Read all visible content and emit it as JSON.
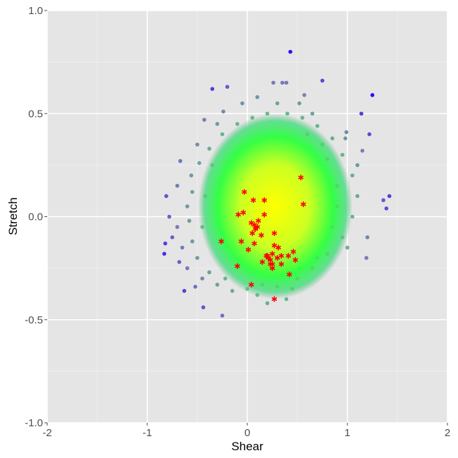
{
  "chart_data": {
    "type": "scatter",
    "xlabel": "Shear",
    "ylabel": "Stretch",
    "xlim": [
      -2,
      2
    ],
    "ylim": [
      -1,
      1
    ],
    "x_ticks": [
      "-2",
      "-1",
      "0",
      "1",
      "2"
    ],
    "y_ticks": [
      "-1.0",
      "-0.5",
      "0.0",
      "0.5",
      "1.0"
    ],
    "grid": true,
    "background": "#e5e5e5",
    "color_scale": [
      "#ffff00",
      "#33ff33",
      "#66bb88",
      "#7777bb",
      "#3300ff"
    ],
    "highlight_color": "#ff0000",
    "points": [
      [
        0.43,
        0.8
      ],
      [
        0.75,
        0.66
      ],
      [
        -0.35,
        0.62
      ],
      [
        -0.2,
        0.63
      ],
      [
        1.25,
        0.59
      ],
      [
        1.14,
        0.5
      ],
      [
        1.22,
        0.4
      ],
      [
        1.42,
        0.1
      ],
      [
        1.36,
        0.08
      ],
      [
        1.39,
        0.04
      ],
      [
        1.19,
        -0.2
      ],
      [
        -0.82,
        -0.13
      ],
      [
        -0.81,
        0.1
      ],
      [
        -0.67,
        0.27
      ],
      [
        -0.25,
        -0.48
      ],
      [
        -0.44,
        -0.44
      ],
      [
        -0.63,
        -0.36
      ],
      [
        0.39,
        -0.4
      ],
      [
        -0.52,
        -0.34
      ],
      [
        -0.83,
        -0.18
      ],
      [
        -0.43,
        0.47
      ],
      [
        -0.24,
        0.51
      ],
      [
        0.26,
        0.65
      ],
      [
        0.35,
        0.65
      ],
      [
        0.39,
        0.65
      ],
      [
        0.57,
        0.59
      ],
      [
        0.99,
        0.41
      ],
      [
        1.15,
        0.32
      ],
      [
        -0.56,
        0.2
      ],
      [
        -0.6,
        0.05
      ],
      [
        -0.7,
        -0.05
      ],
      [
        -0.65,
        -0.15
      ],
      [
        -0.6,
        -0.25
      ],
      [
        -0.45,
        -0.3
      ],
      [
        -0.3,
        -0.33
      ],
      [
        -0.15,
        -0.36
      ],
      [
        0.0,
        -0.35
      ],
      [
        0.15,
        -0.33
      ],
      [
        0.3,
        -0.34
      ],
      [
        0.5,
        -0.3
      ],
      [
        0.65,
        -0.25
      ],
      [
        0.8,
        -0.18
      ],
      [
        0.95,
        -0.1
      ],
      [
        1.05,
        0.0
      ],
      [
        1.1,
        0.1
      ],
      [
        1.05,
        0.2
      ],
      [
        0.95,
        0.3
      ],
      [
        0.85,
        0.38
      ],
      [
        0.7,
        0.44
      ],
      [
        0.55,
        0.48
      ],
      [
        0.4,
        0.5
      ],
      [
        0.2,
        0.5
      ],
      [
        0.05,
        0.48
      ],
      [
        -0.1,
        0.45
      ],
      [
        -0.25,
        0.4
      ],
      [
        -0.38,
        0.33
      ],
      [
        -0.48,
        0.26
      ],
      [
        -0.55,
        0.12
      ],
      [
        -0.58,
        -0.02
      ],
      [
        -0.55,
        -0.12
      ],
      [
        -0.5,
        -0.2
      ],
      [
        -0.38,
        -0.27
      ],
      [
        -0.22,
        -0.3
      ],
      [
        0.85,
        -0.05
      ],
      [
        0.9,
        0.05
      ],
      [
        0.9,
        0.15
      ],
      [
        0.8,
        0.28
      ],
      [
        -0.42,
        0.1
      ],
      [
        -0.45,
        -0.05
      ],
      [
        -0.35,
        0.25
      ],
      [
        0.7,
        -0.2
      ],
      [
        0.6,
        0.4
      ],
      [
        -0.7,
        0.15
      ],
      [
        -0.75,
        -0.1
      ],
      [
        -0.68,
        -0.22
      ],
      [
        1.0,
        -0.15
      ],
      [
        1.1,
        0.25
      ],
      [
        0.2,
        -0.42
      ],
      [
        0.1,
        -0.38
      ],
      [
        -0.05,
        0.55
      ],
      [
        0.3,
        0.55
      ],
      [
        0.65,
        0.5
      ],
      [
        -0.3,
        0.45
      ],
      [
        0.45,
        -0.35
      ],
      [
        0.75,
        0.35
      ],
      [
        -0.5,
        0.35
      ],
      [
        0.1,
        0.58
      ],
      [
        0.52,
        0.55
      ],
      [
        0.98,
        0.38
      ],
      [
        1.2,
        -0.1
      ],
      [
        -0.78,
        0.0
      ]
    ],
    "highlighted_points": [
      [
        0.535,
        0.19
      ],
      [
        -0.03,
        0.12
      ],
      [
        0.06,
        0.08
      ],
      [
        0.17,
        0.08
      ],
      [
        0.56,
        0.06
      ],
      [
        -0.09,
        0.01
      ],
      [
        -0.04,
        0.02
      ],
      [
        0.17,
        0.01
      ],
      [
        0.11,
        -0.02
      ],
      [
        0.04,
        -0.03
      ],
      [
        0.07,
        -0.04
      ],
      [
        0.1,
        -0.05
      ],
      [
        0.08,
        -0.06
      ],
      [
        0.05,
        -0.08
      ],
      [
        0.14,
        -0.09
      ],
      [
        0.27,
        -0.08
      ],
      [
        -0.26,
        -0.12
      ],
      [
        -0.06,
        -0.12
      ],
      [
        0.07,
        -0.13
      ],
      [
        0.01,
        -0.16
      ],
      [
        0.27,
        -0.14
      ],
      [
        0.31,
        -0.15
      ],
      [
        0.46,
        -0.17
      ],
      [
        0.2,
        -0.19
      ],
      [
        0.25,
        -0.18
      ],
      [
        0.34,
        -0.19
      ],
      [
        0.41,
        -0.19
      ],
      [
        0.3,
        -0.2
      ],
      [
        0.48,
        -0.21
      ],
      [
        0.15,
        -0.22
      ],
      [
        0.23,
        -0.21
      ],
      [
        0.25,
        -0.23
      ],
      [
        0.34,
        -0.23
      ],
      [
        0.23,
        -0.23
      ],
      [
        0.25,
        -0.25
      ],
      [
        -0.1,
        -0.24
      ],
      [
        0.42,
        -0.28
      ],
      [
        0.04,
        -0.33
      ],
      [
        0.27,
        -0.4
      ],
      [
        0.19,
        -0.19
      ],
      [
        0.21,
        -0.2
      ]
    ]
  }
}
